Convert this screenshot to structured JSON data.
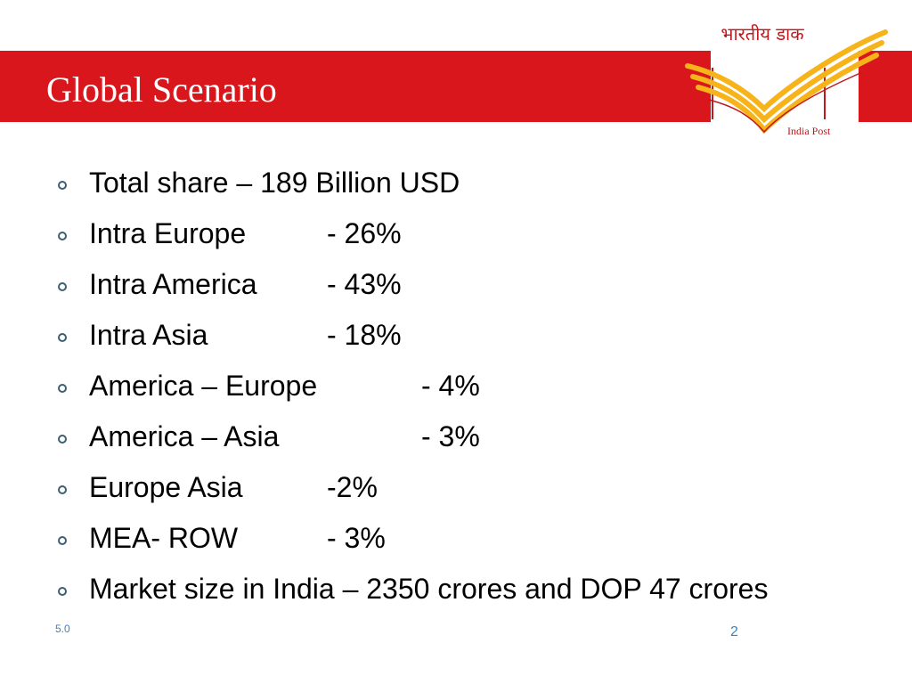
{
  "slide": {
    "title": "Global Scenario",
    "logo": {
      "hindi_text": "भारतीय डाक",
      "english_text": "India Post",
      "mark_icon": "india-post-swoosh-icon"
    },
    "bullets": [
      {
        "label": "Total share – 189 Billion USD",
        "value": ""
      },
      {
        "label": "Intra Europe",
        "value": "- 26%"
      },
      {
        "label": "Intra America",
        "value": "- 43%"
      },
      {
        "label": "Intra Asia",
        "value": "- 18%"
      },
      {
        "label": "America – Europe",
        "value": "- 4%"
      },
      {
        "label": "America – Asia",
        "value": "- 3%"
      },
      {
        "label": "Europe Asia",
        "value": "-2%"
      },
      {
        "label": "MEA- ROW",
        "value": "- 3%"
      },
      {
        "label": "Market size in India – 2350 crores and DOP 47 crores",
        "value": ""
      }
    ],
    "footer": {
      "version": "5.0",
      "page_number": "2"
    },
    "colors": {
      "band": "#d8161b",
      "logo_red": "#c2171c",
      "logo_yellow": "#f6b41a",
      "bullet_marker": "#3e5f72",
      "footer": "#3b82c4"
    }
  }
}
